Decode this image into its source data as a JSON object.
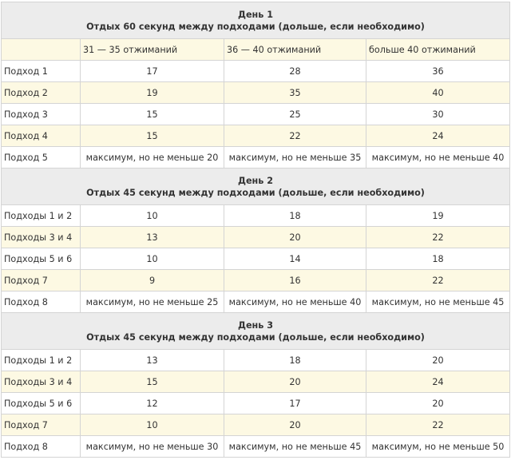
{
  "column_headers": [
    "31 — 35 отжиманий",
    "36 — 40 отжиманий",
    "больше 40 отжиманий"
  ],
  "days": [
    {
      "title": "День 1",
      "rest": "Отдых 60 секунд между подходами (дольше, если необходимо)",
      "rows": [
        {
          "label": "Подход 1",
          "values": [
            "17",
            "28",
            "36"
          ]
        },
        {
          "label": "Подход 2",
          "values": [
            "19",
            "35",
            "40"
          ]
        },
        {
          "label": "Подход 3",
          "values": [
            "15",
            "25",
            "30"
          ]
        },
        {
          "label": "Подход 4",
          "values": [
            "15",
            "22",
            "24"
          ]
        },
        {
          "label": "Подход 5",
          "values": [
            "максимум, но не меньше 20",
            "максимум, но не меньше 35",
            "максимум, но не меньше 40"
          ]
        }
      ]
    },
    {
      "title": "День 2",
      "rest": "Отдых 45 секунд между подходами (дольше, если необходимо)",
      "rows": [
        {
          "label": "Подходы  1 и 2",
          "values": [
            "10",
            "18",
            "19"
          ]
        },
        {
          "label": "Подходы  3 и 4",
          "values": [
            "13",
            "20",
            "22"
          ]
        },
        {
          "label": "Подходы  5 и 6",
          "values": [
            "10",
            "14",
            "18"
          ]
        },
        {
          "label": "Подход 7",
          "values": [
            "9",
            "16",
            "22"
          ]
        },
        {
          "label": "Подход 8",
          "values": [
            "максимум, но не меньше 25",
            "максимум, но не меньше 40",
            "максимум, но не меньше 45"
          ]
        }
      ]
    },
    {
      "title": "День 3",
      "rest": "Отдых 45 секунд между подходами (дольше, если необходимо)",
      "rows": [
        {
          "label": "Подходы  1 и 2",
          "values": [
            "13",
            "18",
            "20"
          ]
        },
        {
          "label": "Подходы  3 и 4",
          "values": [
            "15",
            "20",
            "24"
          ]
        },
        {
          "label": "Подходы  5 и 6",
          "values": [
            "12",
            "17",
            "20"
          ]
        },
        {
          "label": "Подход 7",
          "values": [
            "10",
            "20",
            "22"
          ]
        },
        {
          "label": "Подход 8",
          "values": [
            "максимум, но не меньше 30",
            "максимум, но не меньше 45",
            "максимум, но не меньше 50"
          ]
        }
      ]
    }
  ]
}
